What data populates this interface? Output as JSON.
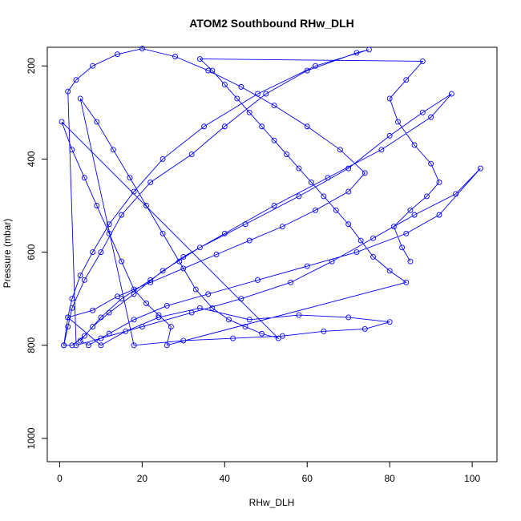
{
  "chart_data": {
    "type": "scatter",
    "title": "ATOM2 Southbound RHw_DLH",
    "xlabel": "RHw_DLH",
    "ylabel": "Pressure (mbar)",
    "xlim": [
      -3,
      106
    ],
    "ylim": [
      1050,
      160
    ],
    "y_reversed": true,
    "x_ticks": [
      0,
      20,
      40,
      60,
      80,
      100
    ],
    "y_ticks": [
      200,
      400,
      600,
      800,
      1000
    ],
    "x_tick_labels": [
      "0",
      "20",
      "40",
      "60",
      "80",
      "100"
    ],
    "y_tick_labels": [
      "200",
      "400",
      "600",
      "800",
      "1000"
    ],
    "grid": false,
    "series": [
      {
        "color": "#0000ff",
        "marker": "open-circle",
        "lines": true,
        "points": [
          [
            1,
            800
          ],
          [
            2,
            740
          ],
          [
            3,
            700
          ],
          [
            5,
            650
          ],
          [
            8,
            600
          ],
          [
            12,
            540
          ],
          [
            18,
            470
          ],
          [
            25,
            400
          ],
          [
            35,
            330
          ],
          [
            48,
            260
          ],
          [
            62,
            200
          ],
          [
            75,
            165
          ],
          [
            72,
            172
          ],
          [
            60,
            210
          ],
          [
            50,
            260
          ],
          [
            40,
            330
          ],
          [
            32,
            390
          ],
          [
            22,
            450
          ],
          [
            15,
            520
          ],
          [
            10,
            600
          ],
          [
            6,
            660
          ],
          [
            3,
            720
          ],
          [
            2,
            760
          ],
          [
            1,
            800
          ],
          [
            3,
            800
          ],
          [
            6,
            780
          ],
          [
            10,
            740
          ],
          [
            15,
            700
          ],
          [
            22,
            660
          ],
          [
            30,
            610
          ],
          [
            40,
            560
          ],
          [
            52,
            500
          ],
          [
            65,
            440
          ],
          [
            78,
            380
          ],
          [
            90,
            310
          ],
          [
            95,
            260
          ],
          [
            88,
            300
          ],
          [
            80,
            350
          ],
          [
            70,
            420
          ],
          [
            58,
            480
          ],
          [
            45,
            540
          ],
          [
            34,
            590
          ],
          [
            25,
            640
          ],
          [
            18,
            690
          ],
          [
            12,
            730
          ],
          [
            8,
            760
          ],
          [
            5,
            790
          ],
          [
            7,
            800
          ],
          [
            12,
            775
          ],
          [
            18,
            745
          ],
          [
            26,
            715
          ],
          [
            36,
            690
          ],
          [
            48,
            660
          ],
          [
            60,
            630
          ],
          [
            72,
            600
          ],
          [
            84,
            560
          ],
          [
            92,
            520
          ],
          [
            102,
            420
          ],
          [
            96,
            475
          ],
          [
            86,
            520
          ],
          [
            76,
            570
          ],
          [
            66,
            620
          ],
          [
            56,
            665
          ],
          [
            44,
            700
          ],
          [
            32,
            730
          ],
          [
            20,
            760
          ],
          [
            10,
            785
          ],
          [
            4,
            800
          ],
          [
            2,
            255
          ],
          [
            4,
            230
          ],
          [
            8,
            200
          ],
          [
            14,
            175
          ],
          [
            20,
            163
          ],
          [
            28,
            180
          ],
          [
            36,
            210
          ],
          [
            44,
            245
          ],
          [
            52,
            285
          ],
          [
            60,
            330
          ],
          [
            68,
            380
          ],
          [
            74,
            430
          ],
          [
            70,
            470
          ],
          [
            62,
            510
          ],
          [
            54,
            545
          ],
          [
            46,
            575
          ],
          [
            38,
            605
          ],
          [
            30,
            635
          ],
          [
            22,
            665
          ],
          [
            14,
            695
          ],
          [
            8,
            725
          ],
          [
            2,
            740
          ],
          [
            10,
            800
          ],
          [
            16,
            770
          ],
          [
            24,
            740
          ],
          [
            34,
            720
          ],
          [
            46,
            745
          ],
          [
            58,
            735
          ],
          [
            70,
            740
          ],
          [
            80,
            750
          ],
          [
            74,
            765
          ],
          [
            64,
            770
          ],
          [
            54,
            780
          ],
          [
            42,
            785
          ],
          [
            30,
            790
          ],
          [
            18,
            800
          ],
          [
            5,
            270
          ],
          [
            9,
            320
          ],
          [
            13,
            380
          ],
          [
            17,
            440
          ],
          [
            21,
            500
          ],
          [
            25,
            560
          ],
          [
            29,
            620
          ],
          [
            33,
            680
          ],
          [
            37,
            720
          ],
          [
            41,
            745
          ],
          [
            45,
            760
          ],
          [
            49,
            775
          ],
          [
            53,
            785
          ],
          [
            0.5,
            320
          ],
          [
            3,
            380
          ],
          [
            6,
            440
          ],
          [
            9,
            500
          ],
          [
            12,
            560
          ],
          [
            15,
            620
          ],
          [
            18,
            680
          ],
          [
            21,
            710
          ],
          [
            24,
            735
          ],
          [
            27,
            760
          ],
          [
            26,
            800
          ],
          [
            84,
            665
          ],
          [
            80,
            640
          ],
          [
            76,
            610
          ],
          [
            73,
            575
          ],
          [
            70,
            540
          ],
          [
            67,
            510
          ],
          [
            64,
            480
          ],
          [
            61,
            450
          ],
          [
            58,
            420
          ],
          [
            55,
            390
          ],
          [
            52,
            360
          ],
          [
            49,
            330
          ],
          [
            46,
            300
          ],
          [
            43,
            270
          ],
          [
            40,
            240
          ],
          [
            37,
            210
          ],
          [
            34,
            185
          ],
          [
            88,
            190
          ],
          [
            84,
            230
          ],
          [
            80,
            270
          ],
          [
            82,
            320
          ],
          [
            86,
            370
          ],
          [
            90,
            410
          ],
          [
            92,
            450
          ],
          [
            89,
            480
          ],
          [
            85,
            510
          ],
          [
            81,
            545
          ],
          [
            83,
            590
          ],
          [
            85,
            620
          ]
        ]
      }
    ]
  }
}
